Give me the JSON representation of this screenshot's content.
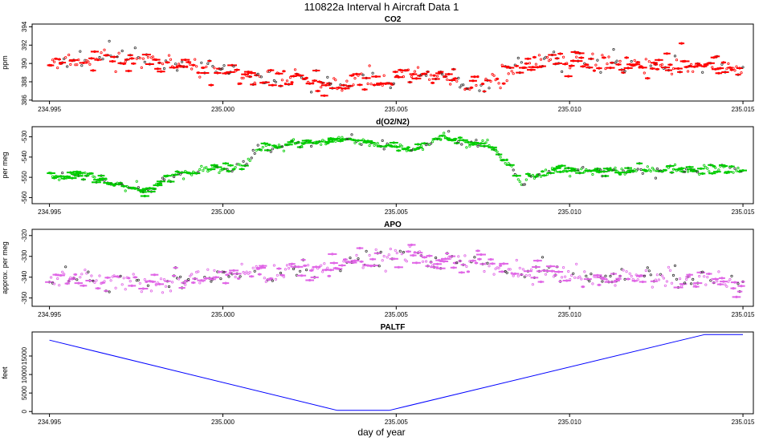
{
  "figure": {
    "title": "110822a   Interval h Aircraft Data 1",
    "xlabel": "day of year"
  },
  "chart_data": [
    {
      "type": "scatter",
      "title": "CO2",
      "ylabel": "ppm",
      "color": "#ff0000",
      "xlim": [
        234.9945,
        235.0153
      ],
      "ylim": [
        385.9,
        394.3
      ],
      "xticks": [
        234.995,
        235.0,
        235.005,
        235.01,
        235.015
      ],
      "xtick_labels": [
        "234.995",
        "235.000",
        "235.005",
        "235.010",
        "235.015"
      ],
      "yticks": [
        386,
        388,
        390,
        392,
        394
      ],
      "ytick_labels": [
        "386",
        "388",
        "390",
        "392",
        "394"
      ],
      "trend": {
        "x": [
          234.995,
          234.9965,
          234.998,
          235.0,
          235.0015,
          235.003,
          235.0045,
          235.0055,
          235.0065,
          235.0075,
          235.0085,
          235.0095,
          235.011,
          235.0125,
          235.014,
          235.015
        ],
        "y": [
          390.0,
          390.6,
          390.0,
          389.4,
          388.2,
          387.8,
          388.3,
          388.9,
          388.3,
          387.8,
          389.5,
          390.4,
          390.0,
          389.8,
          389.7,
          389.3
        ]
      },
      "noise": 0.75,
      "n_points": 430
    },
    {
      "type": "scatter",
      "title": "d(O2/N2)",
      "ylabel": "per meg",
      "color": "#00cc00",
      "xlim": [
        234.9945,
        235.0153
      ],
      "ylim": [
        -563,
        -525
      ],
      "xticks": [
        234.995,
        235.0,
        235.005,
        235.01,
        235.015
      ],
      "xtick_labels": [
        "234.995",
        "235.000",
        "235.005",
        "235.010",
        "235.015"
      ],
      "yticks": [
        -560,
        -550,
        -540,
        -530
      ],
      "ytick_labels": [
        "-560",
        "-550",
        "-540",
        "-530"
      ],
      "trend": {
        "x": [
          234.995,
          234.996,
          234.997,
          234.9977,
          234.9985,
          234.9995,
          235.0005,
          235.001,
          235.0025,
          235.0035,
          235.0045,
          235.0055,
          235.0063,
          235.007,
          235.0078,
          235.0082,
          235.0086,
          235.0095,
          235.011,
          235.0125,
          235.015
        ],
        "y": [
          -550,
          -548,
          -554,
          -557,
          -549,
          -547,
          -544,
          -536,
          -533,
          -531,
          -534,
          -536,
          -530,
          -533,
          -535,
          -544,
          -552,
          -546,
          -547,
          -546,
          -546
        ]
      },
      "noise": 1.6,
      "n_points": 430
    },
    {
      "type": "scatter",
      "title": "APO",
      "ylabel": "approx. per meg",
      "color": "#e066e6",
      "xlim": [
        234.9945,
        235.0153
      ],
      "ylim": [
        -354,
        -317
      ],
      "xticks": [
        234.995,
        235.0,
        235.005,
        235.01,
        235.015
      ],
      "xtick_labels": [
        "234.995",
        "235.000",
        "235.005",
        "235.010",
        "235.015"
      ],
      "yticks": [
        -350,
        -340,
        -330,
        -320
      ],
      "ytick_labels": [
        "-350",
        "-340",
        "-330",
        "-320"
      ],
      "trend": {
        "x": [
          234.995,
          234.9965,
          234.998,
          234.9995,
          235.001,
          235.0025,
          235.0035,
          235.0045,
          235.0055,
          235.0065,
          235.0075,
          235.0085,
          235.0095,
          235.011,
          235.0125,
          235.014,
          235.015
        ],
        "y": [
          -340,
          -341,
          -344,
          -340,
          -337,
          -336,
          -334,
          -330,
          -329,
          -331,
          -333,
          -338,
          -339,
          -340,
          -340,
          -341,
          -341
        ]
      },
      "noise": 3.5,
      "n_points": 430
    },
    {
      "type": "line",
      "title": "PALTF",
      "ylabel": "feet",
      "color": "#0000ff",
      "xlim": [
        234.9945,
        235.0153
      ],
      "ylim": [
        -600,
        21500
      ],
      "xticks": [
        234.995,
        235.0,
        235.005,
        235.01,
        235.015
      ],
      "xtick_labels": [
        "234.995",
        "235.000",
        "235.005",
        "235.010",
        "235.015"
      ],
      "yticks": [
        0,
        5000,
        10000,
        15000
      ],
      "ytick_labels": [
        "0",
        "5000",
        "10000",
        "15000"
      ],
      "x": [
        234.995,
        235.0033,
        235.0048,
        235.0139,
        235.015
      ],
      "y": [
        19300,
        300,
        300,
        20800,
        20800
      ]
    }
  ]
}
